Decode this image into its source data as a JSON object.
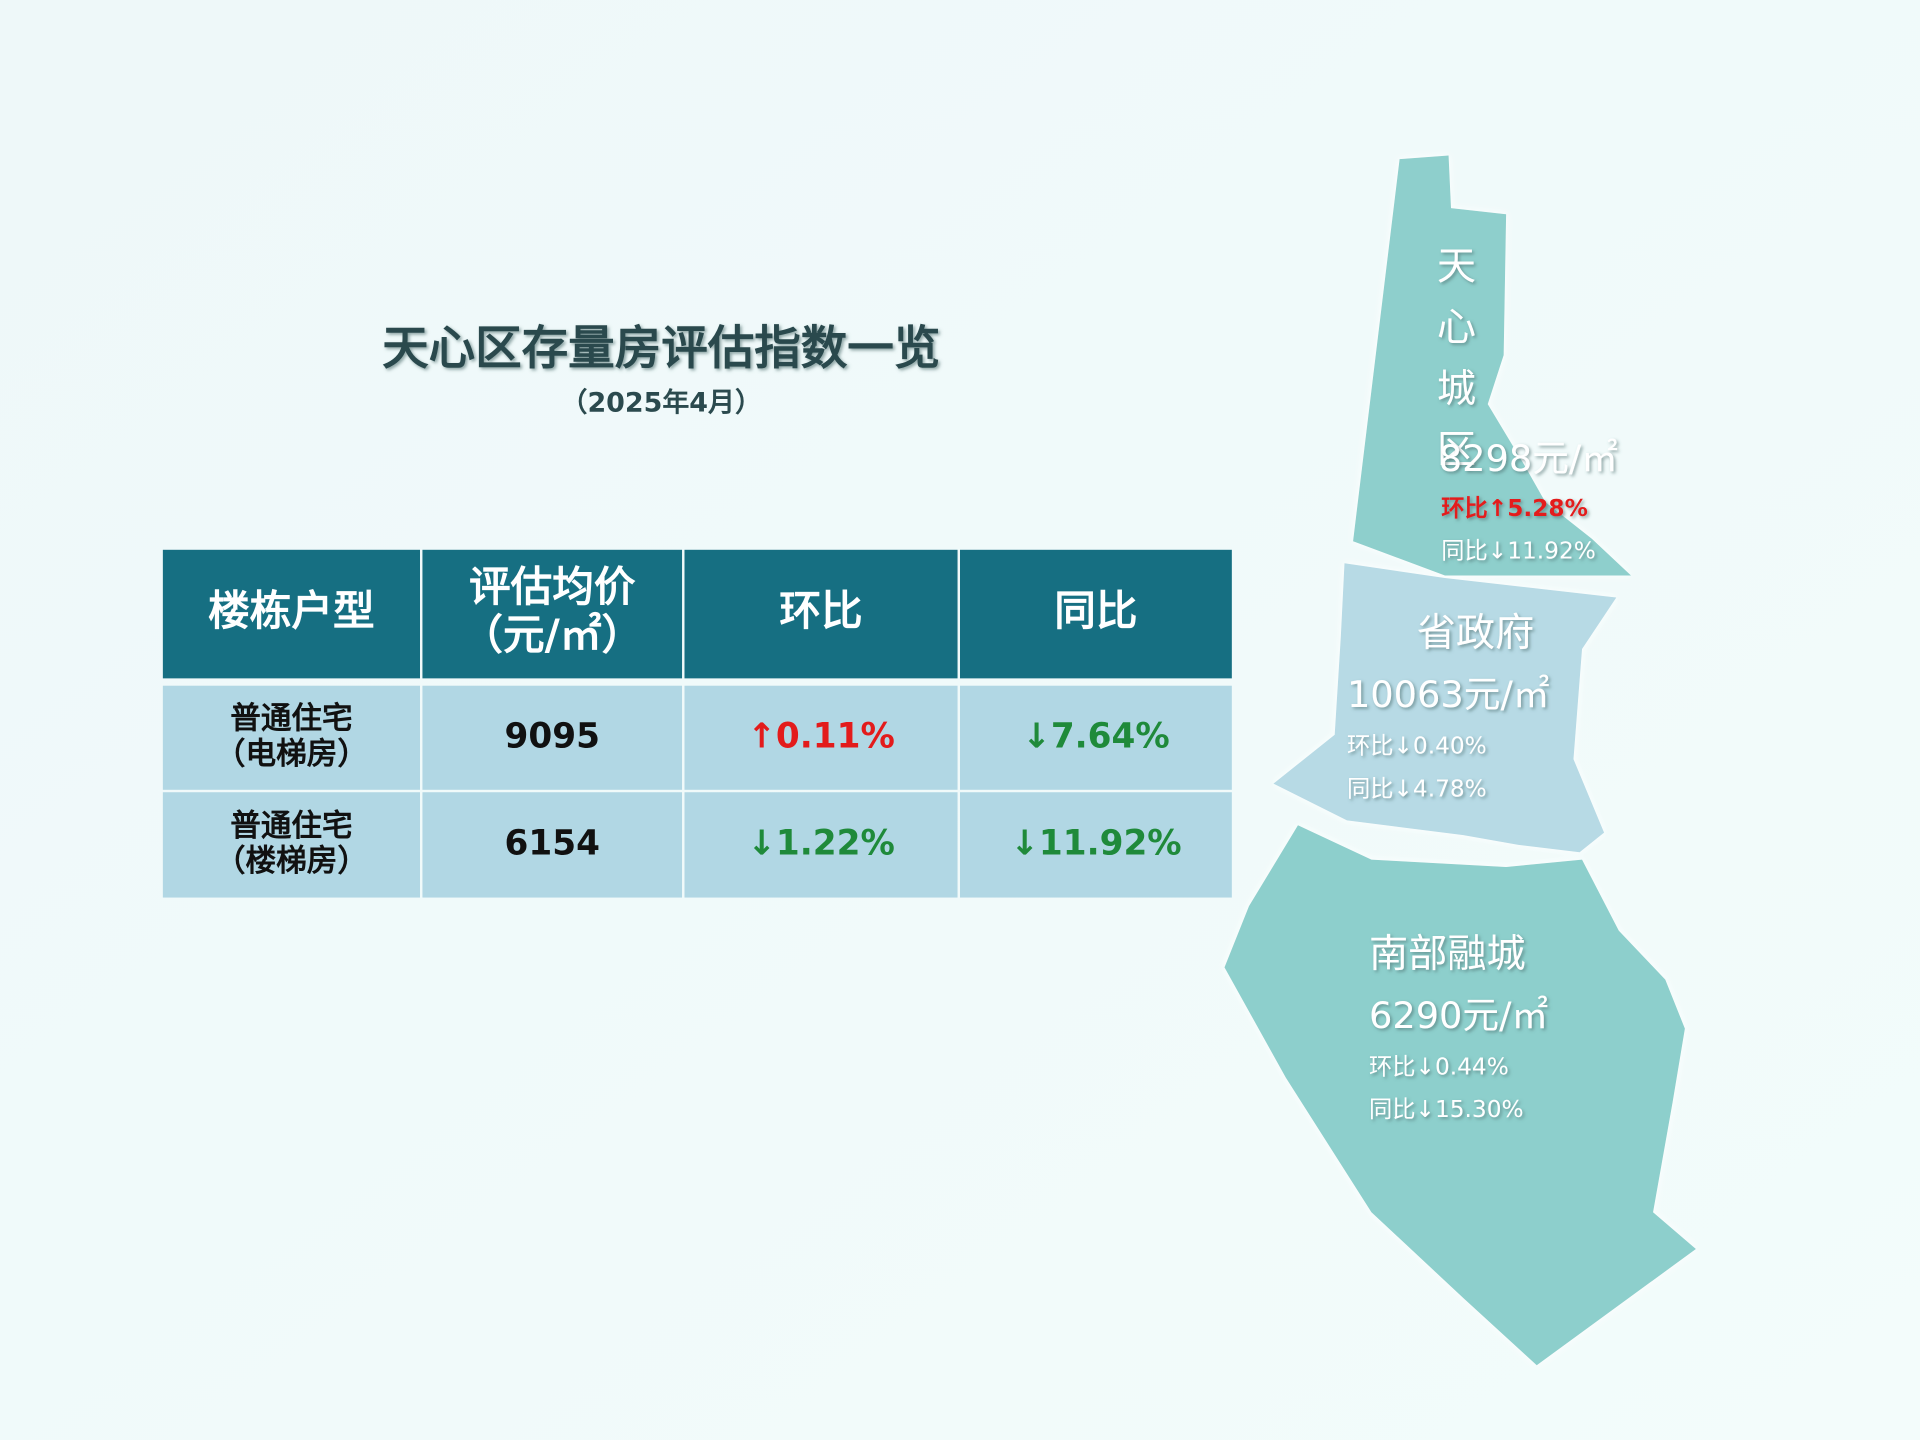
{
  "title": "天心区存量房评估指数一览",
  "subtitle": "（2025年4月）",
  "table": {
    "header": [
      "楼栋户型",
      [
        "评估均价",
        "（元/㎡）"
      ],
      "环比",
      "同比"
    ],
    "rows": [
      [
        [
          "普通住宅",
          "（电梯房）"
        ],
        "9095",
        "↑0.11%",
        "↓7.64%"
      ],
      [
        [
          "普通住宅",
          "（楼梯房）"
        ],
        "6154",
        "↓1.22%",
        "↓11.92%"
      ]
    ]
  },
  "map": {
    "regions": [
      {
        "name": "天心城区",
        "price": "8298元/㎡",
        "mom": "环比↑5.28%",
        "yoy": "同比↓11.92%"
      },
      {
        "name": "省政府",
        "price": "10063元/㎡",
        "mom": "环比↓0.40%",
        "yoy": "同比↓4.78%"
      },
      {
        "name": "南部融城",
        "price": "6290元/㎡",
        "mom": "环比↓0.44%",
        "yoy": "同比↓15.30%"
      }
    ]
  }
}
